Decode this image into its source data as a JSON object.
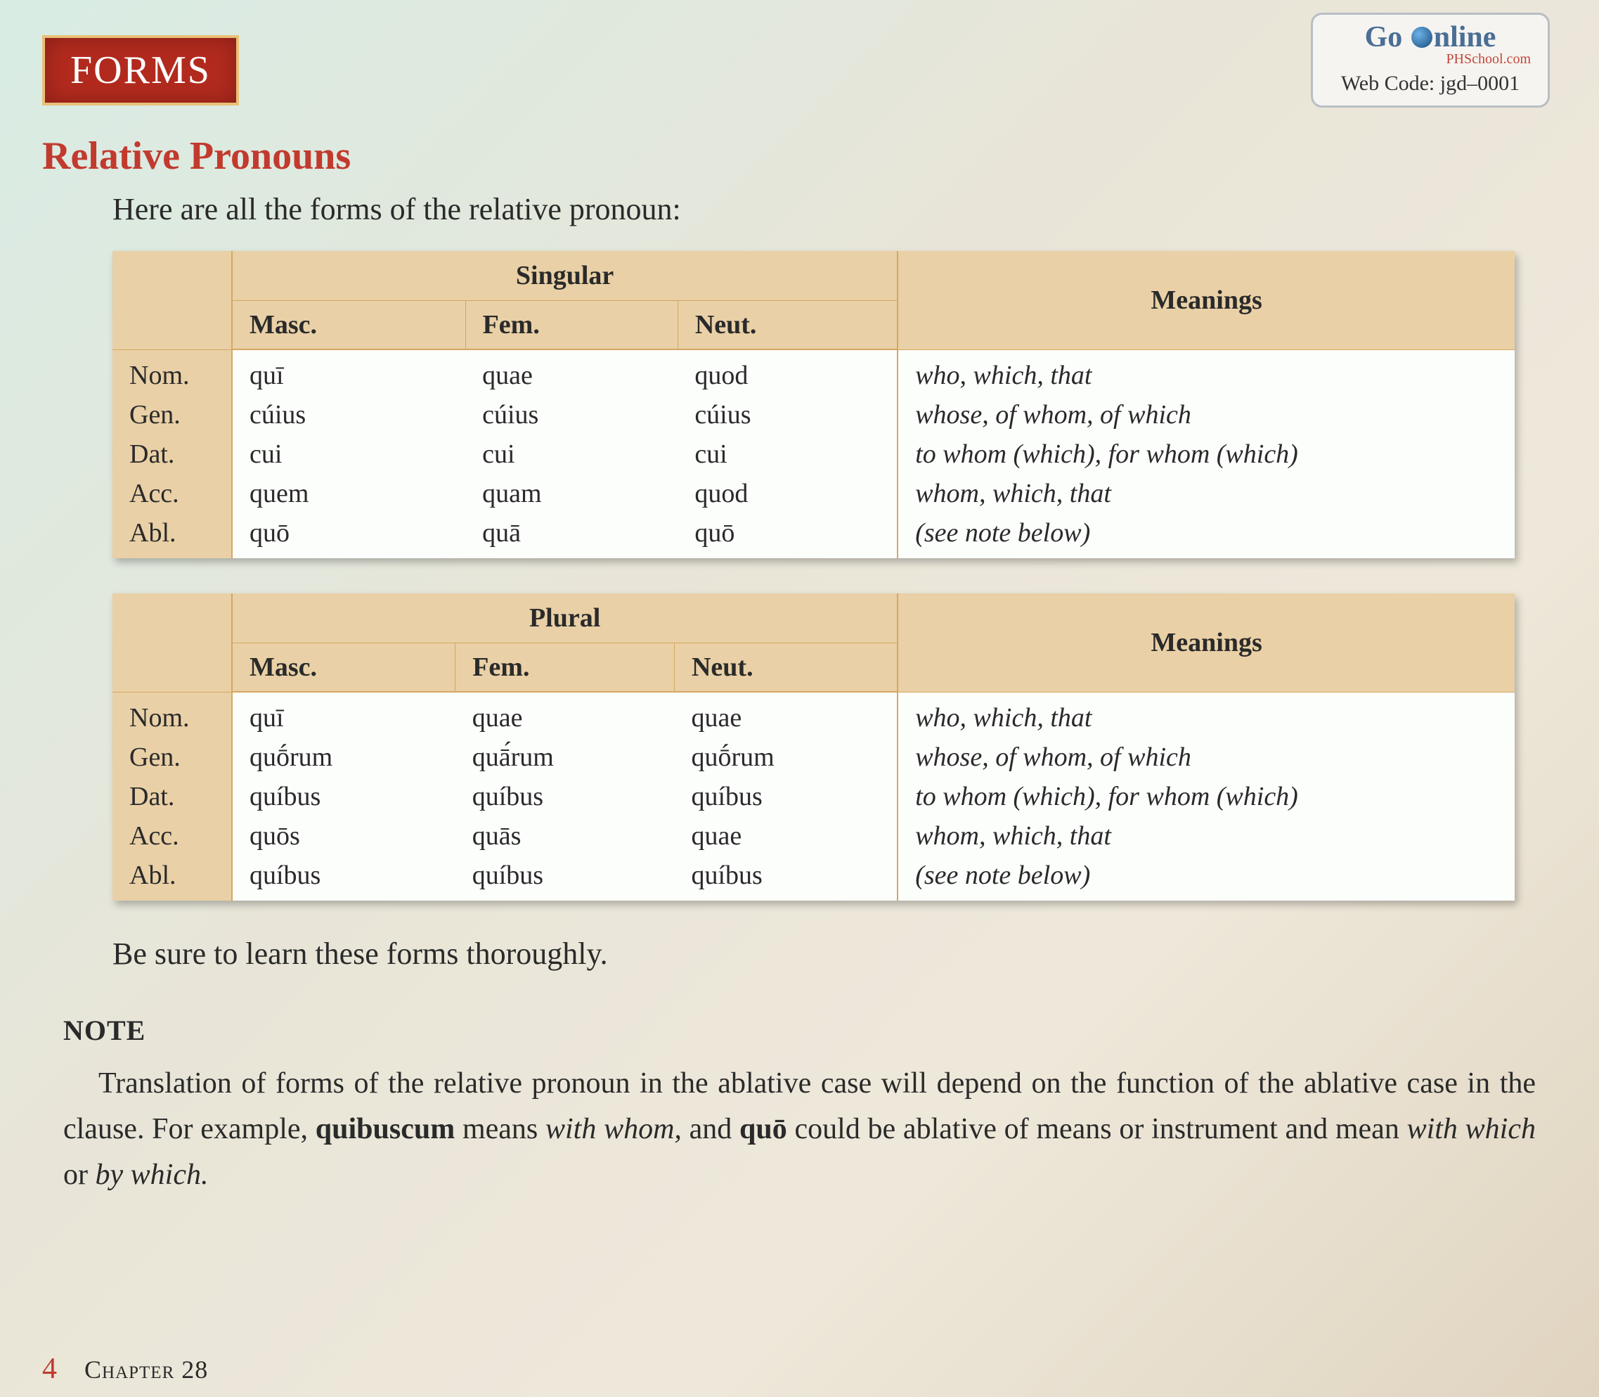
{
  "colors": {
    "badge_bg": "#b22a1e",
    "badge_border": "#e8c178",
    "badge_text": "#ffffff",
    "heading": "#c23a2e",
    "table_header_bg": "#e9d0a6",
    "table_border": "#d4a860",
    "table_body_bg": "#fcfefc",
    "body_text": "#2a2a2a",
    "page_gradient_start": "#d8ece4",
    "page_gradient_end": "#e0d4c0",
    "online_border": "#b8bec4",
    "online_title": "#4a6e96",
    "online_sub": "#c2453a"
  },
  "typography": {
    "body_font": "Georgia, serif",
    "badge_fontsize": 56,
    "heading_fontsize": 56,
    "intro_fontsize": 44,
    "table_fontsize": 38,
    "note_head_fontsize": 40,
    "note_body_fontsize": 42,
    "footer_fontsize": 36
  },
  "section_badge": "FORMS",
  "online_box": {
    "title_pre": "Go ",
    "title_post": "nline",
    "subtitle": "PHSchool.com",
    "code_label": "Web Code: jgd–0001"
  },
  "heading": "Relative Pronouns",
  "intro_text": "Here are all the forms of the relative pronoun:",
  "cases": [
    "Nom.",
    "Gen.",
    "Dat.",
    "Acc.",
    "Abl."
  ],
  "genders": [
    "Masc.",
    "Fem.",
    "Neut."
  ],
  "meanings_header": "Meanings",
  "tables": {
    "columns": [
      "rowlabel",
      "masc",
      "fem",
      "neut",
      "meaning"
    ],
    "col_widths_pct": [
      9,
      13,
      13,
      13,
      52
    ],
    "border_width": 2,
    "singular": {
      "number_label": "Singular",
      "rows": [
        {
          "case": "Nom.",
          "masc": "quī",
          "fem": "quae",
          "neut": "quod",
          "meaning": "who, which, that"
        },
        {
          "case": "Gen.",
          "masc": "cúius",
          "fem": "cúius",
          "neut": "cúius",
          "meaning": "whose, of whom, of which"
        },
        {
          "case": "Dat.",
          "masc": "cui",
          "fem": "cui",
          "neut": "cui",
          "meaning": "to whom (which), for whom (which)"
        },
        {
          "case": "Acc.",
          "masc": "quem",
          "fem": "quam",
          "neut": "quod",
          "meaning": "whom, which, that"
        },
        {
          "case": "Abl.",
          "masc": "quō",
          "fem": "quā",
          "neut": "quō",
          "meaning": "(see note below)"
        }
      ]
    },
    "plural": {
      "number_label": "Plural",
      "rows": [
        {
          "case": "Nom.",
          "masc": "quī",
          "fem": "quae",
          "neut": "quae",
          "meaning": "who, which, that"
        },
        {
          "case": "Gen.",
          "masc": "quṓrum",
          "fem": "quā́rum",
          "neut": "quṓrum",
          "meaning": "whose, of whom, of which"
        },
        {
          "case": "Dat.",
          "masc": "quíbus",
          "fem": "quíbus",
          "neut": "quíbus",
          "meaning": "to whom (which), for whom (which)"
        },
        {
          "case": "Acc.",
          "masc": "quōs",
          "fem": "quās",
          "neut": "quae",
          "meaning": "whom, which, that"
        },
        {
          "case": "Abl.",
          "masc": "quíbus",
          "fem": "quíbus",
          "neut": "quíbus",
          "meaning": "(see note below)"
        }
      ]
    }
  },
  "closing_text": "Be sure to learn these forms thoroughly.",
  "note": {
    "heading": "NOTE",
    "parts": [
      {
        "t": "Translation of forms of the relative pronoun in the ablative case will depend on the function of the ablative case in the clause. For example, "
      },
      {
        "t": "quibuscum",
        "cls": "lat"
      },
      {
        "t": " means "
      },
      {
        "t": "with whom,",
        "cls": "em"
      },
      {
        "t": " and "
      },
      {
        "t": "quō",
        "cls": "lat"
      },
      {
        "t": " could be ablative of means or instrument and mean "
      },
      {
        "t": "with which",
        "cls": "em"
      },
      {
        "t": " or "
      },
      {
        "t": "by which.",
        "cls": "em"
      }
    ]
  },
  "footer": {
    "page_number": "4",
    "chapter_label": "Chapter 28"
  }
}
